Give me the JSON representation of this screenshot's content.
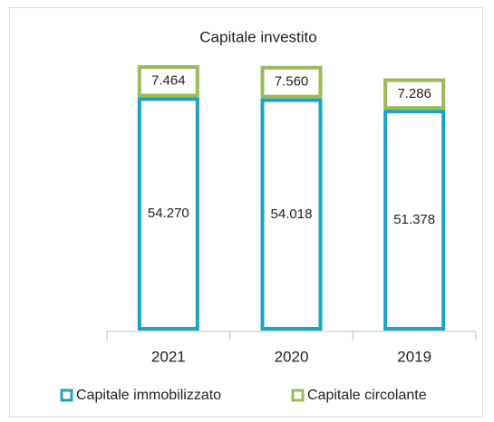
{
  "chart_data": {
    "type": "stacked_bar",
    "title": "Capitale  investito",
    "categories": [
      "2021",
      "2020",
      "2019"
    ],
    "series": [
      {
        "name": "Capitale immobilizzato",
        "color": "#1ba3c1",
        "values": [
          54270,
          54018,
          51378
        ],
        "value_labels": [
          "54.270",
          "54.018",
          "51.378"
        ]
      },
      {
        "name": "Capitale circolante",
        "color": "#9bbb59",
        "values": [
          7464,
          7560,
          7286
        ],
        "value_labels": [
          "7.464",
          "7.560",
          "7.286"
        ]
      }
    ]
  }
}
